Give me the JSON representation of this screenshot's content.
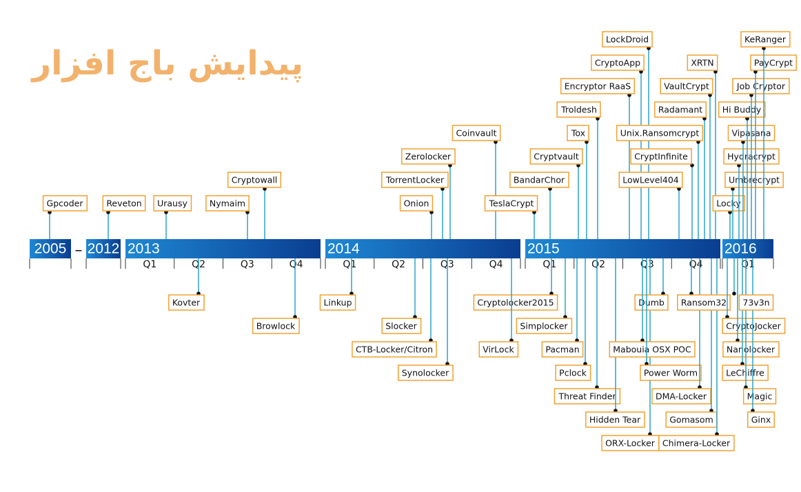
{
  "title": "پیدایش باج افزار",
  "timeline": {
    "early_years": [
      "2005",
      "2012"
    ],
    "separator": "–",
    "segments": [
      {
        "year": "2013",
        "quarters": [
          "Q1",
          "Q2",
          "Q3",
          "Q4"
        ]
      },
      {
        "year": "2014",
        "quarters": [
          "Q1",
          "Q2",
          "Q3",
          "Q4"
        ]
      },
      {
        "year": "2015",
        "quarters": [
          "Q1",
          "Q2",
          "Q3",
          "Q4"
        ]
      },
      {
        "year": "2016",
        "quarters": [
          "Q1"
        ]
      }
    ]
  },
  "above": [
    "Gpcoder",
    "Reveton",
    "Urausy",
    "Nymaim",
    "Cryptowall",
    "Onion",
    "TorrentLocker",
    "Zerolocker",
    "Coinvault",
    "TeslaCrypt",
    "BandarChor",
    "Cryptvault",
    "Tox",
    "Troldesh",
    "Encryptor RaaS",
    "CryptoApp",
    "LockDroid",
    "Unix.Ransomcrypt",
    "CryptInfinite",
    "LowLevel404",
    "Radamant",
    "VaultCrypt",
    "XRTN",
    "Locky",
    "Umbrecrypt",
    "Hydracrypt",
    "Vipasana",
    "Hi Buddy",
    "Job Cryptor",
    "PayCrypt",
    "KeRanger"
  ],
  "below": [
    "Kovter",
    "Browlock",
    "Linkup",
    "Slocker",
    "CTB-Locker/Citron",
    "Synolocker",
    "Cryptolocker2015",
    "VirLock",
    "Simplocker",
    "Pacman",
    "Pclock",
    "Threat Finder",
    "Hidden Tear",
    "ORX-Locker",
    "Dumb",
    "Mabouia OSX POC",
    "Power Worm",
    "DMA-Locker",
    "Gomasom",
    "Chimera-Locker",
    "Ransom32",
    "CryptoJocker",
    "Nanolocker",
    "LeChiffre",
    "Magic",
    "Ginx",
    "73v3n"
  ]
}
